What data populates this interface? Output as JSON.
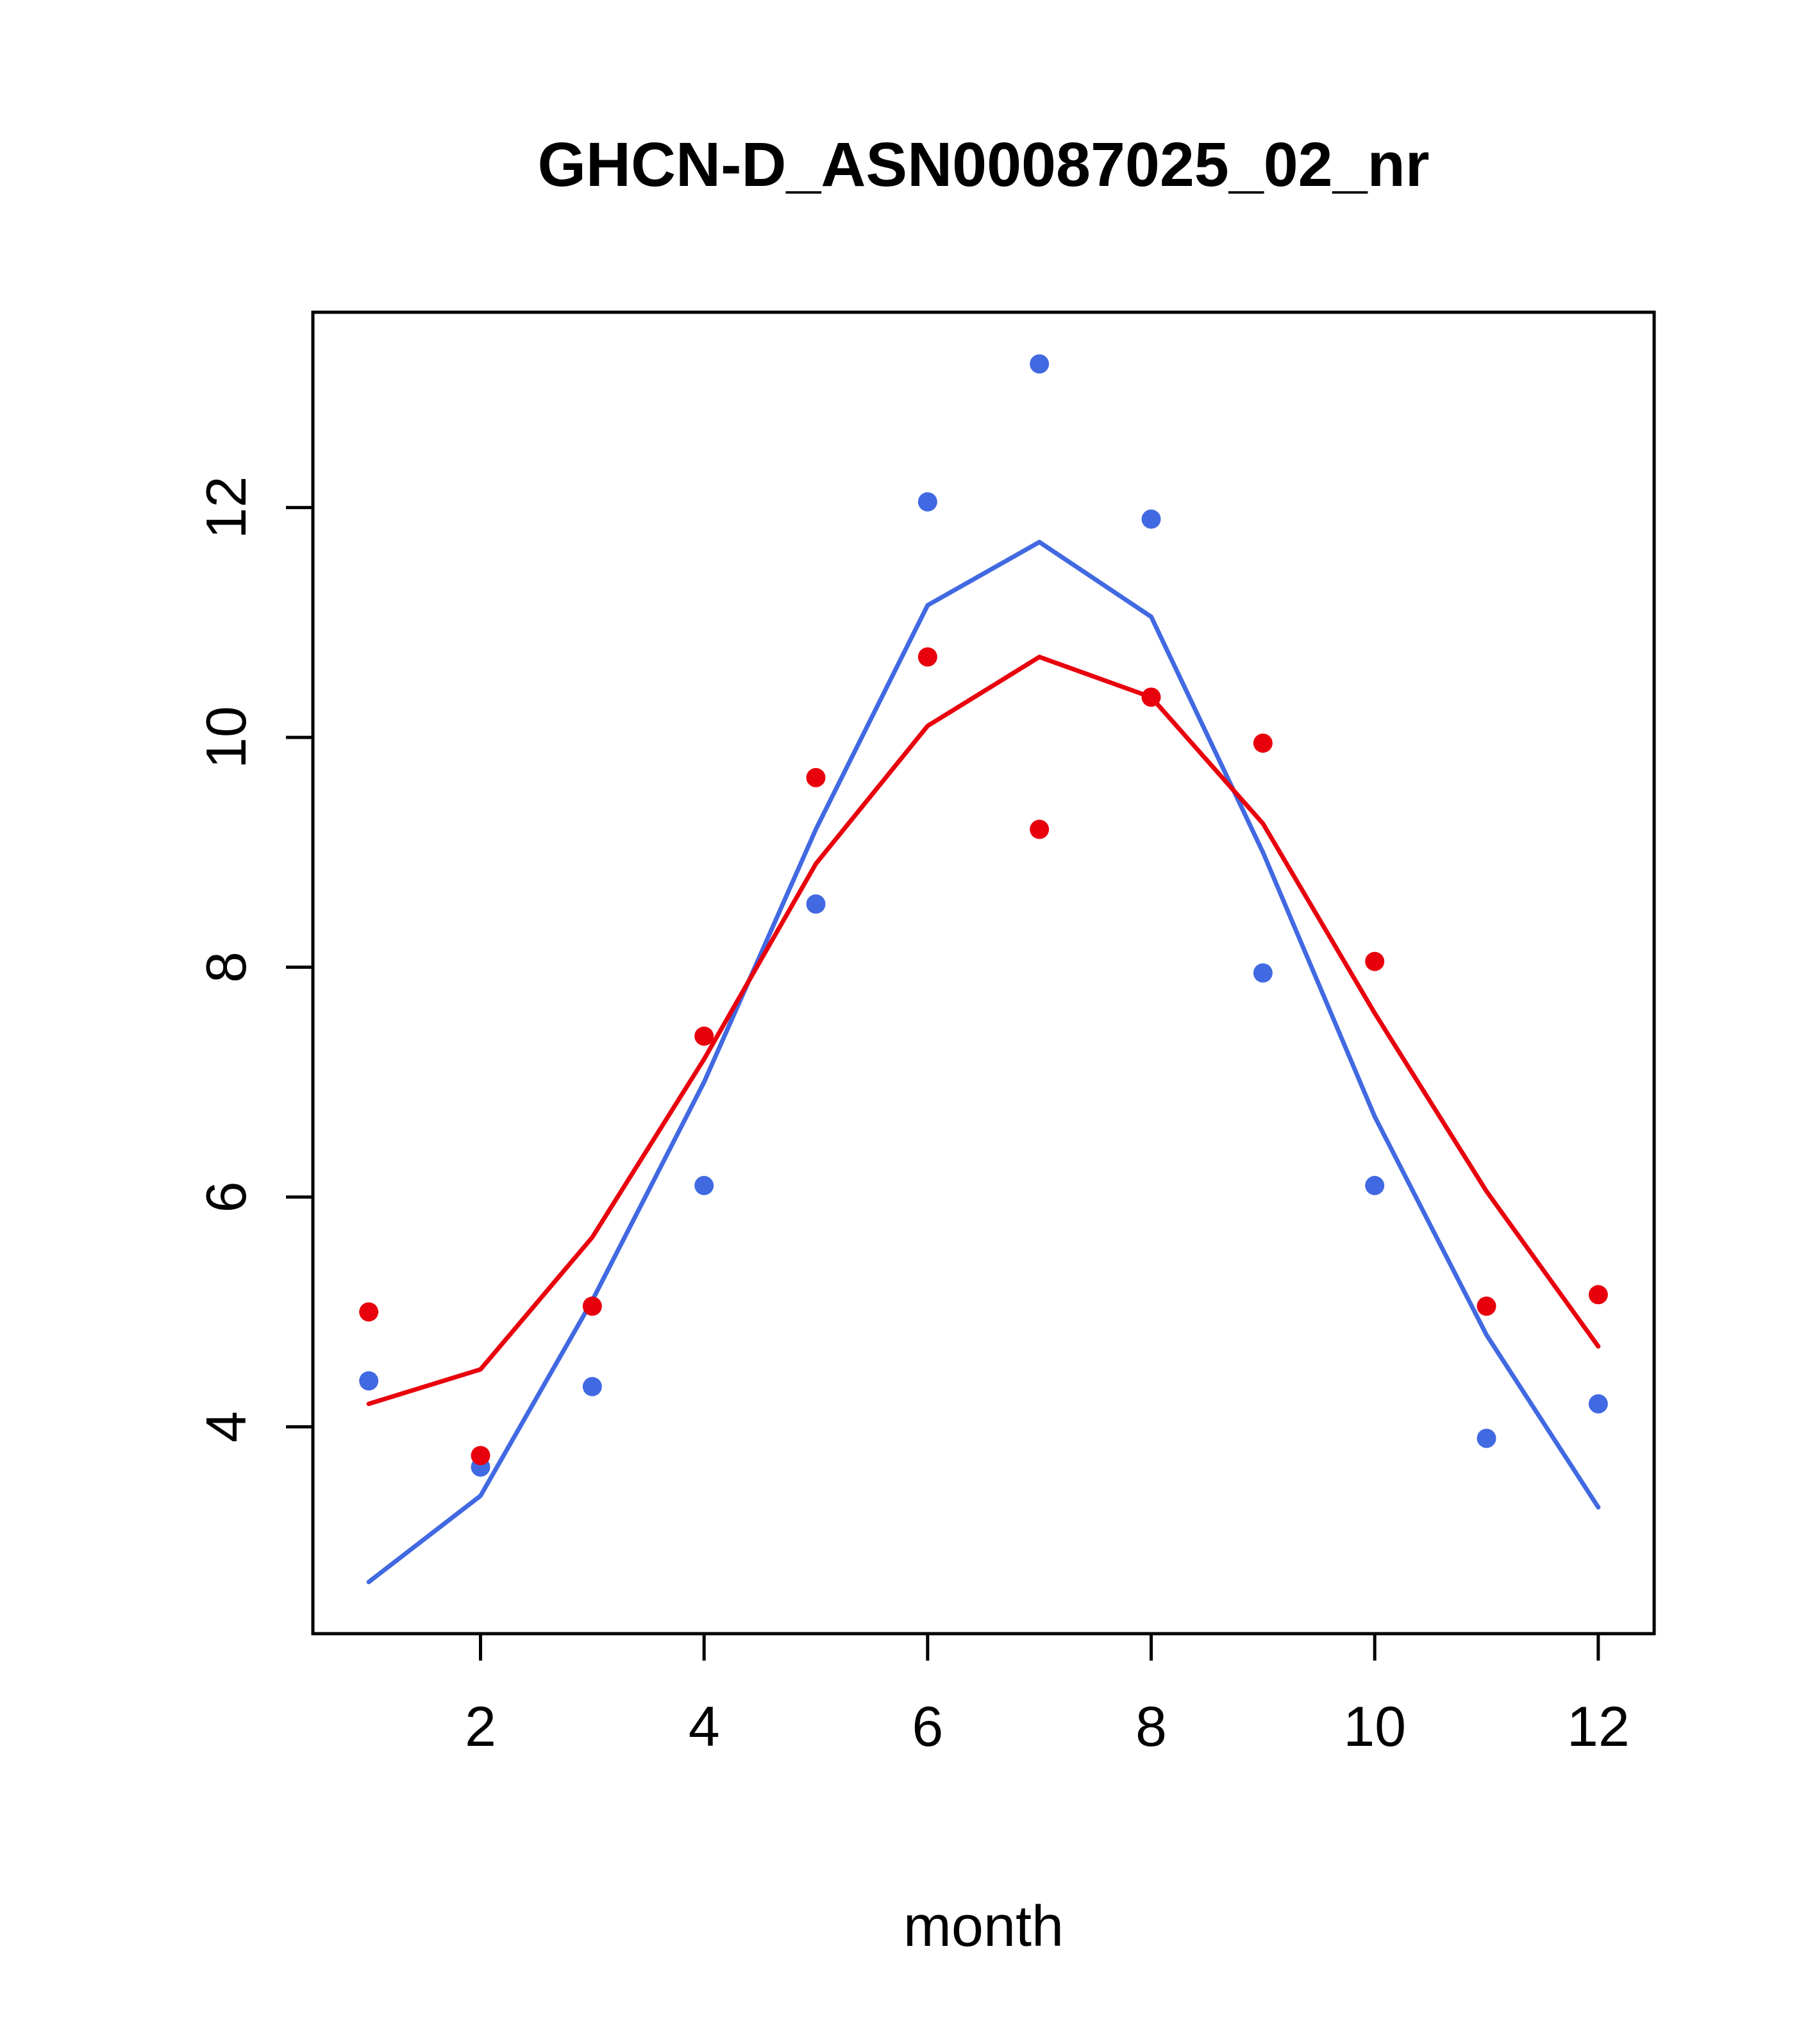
{
  "title": "GHCN-D_ASN00087025_02_nr",
  "chart_data": {
    "type": "line",
    "title": "GHCN-D_ASN00087025_02_nr",
    "xlabel": "month",
    "ylabel": "",
    "x": [
      1,
      2,
      3,
      4,
      5,
      6,
      7,
      8,
      9,
      10,
      11,
      12
    ],
    "xlim": [
      0.5,
      12.5
    ],
    "ylim": [
      2.2,
      13.7
    ],
    "x_ticks": [
      2,
      4,
      6,
      8,
      10,
      12
    ],
    "y_ticks": [
      4,
      6,
      8,
      10,
      12
    ],
    "grid": false,
    "legend": "none",
    "colors": {
      "blue": "#4169E1",
      "red": "#E8000D"
    },
    "series": [
      {
        "name": "blue-line",
        "style": "line",
        "color": "#4169E1",
        "values": [
          2.65,
          3.4,
          5.1,
          7.0,
          9.2,
          11.15,
          11.7,
          11.05,
          9.0,
          6.7,
          4.8,
          3.3
        ]
      },
      {
        "name": "red-line",
        "style": "line",
        "color": "#E8000D",
        "values": [
          4.2,
          4.5,
          5.65,
          7.2,
          8.9,
          10.1,
          10.7,
          10.35,
          9.25,
          7.6,
          6.05,
          4.7
        ]
      },
      {
        "name": "blue-points",
        "style": "points",
        "color": "#4169E1",
        "values": [
          4.4,
          3.65,
          4.35,
          6.1,
          8.55,
          12.05,
          13.25,
          11.9,
          7.95,
          6.1,
          3.9,
          4.2
        ]
      },
      {
        "name": "red-points",
        "style": "points",
        "color": "#E8000D",
        "values": [
          5.0,
          3.75,
          5.05,
          7.4,
          9.65,
          10.7,
          9.2,
          10.35,
          9.95,
          8.05,
          5.05,
          5.15
        ]
      }
    ]
  }
}
